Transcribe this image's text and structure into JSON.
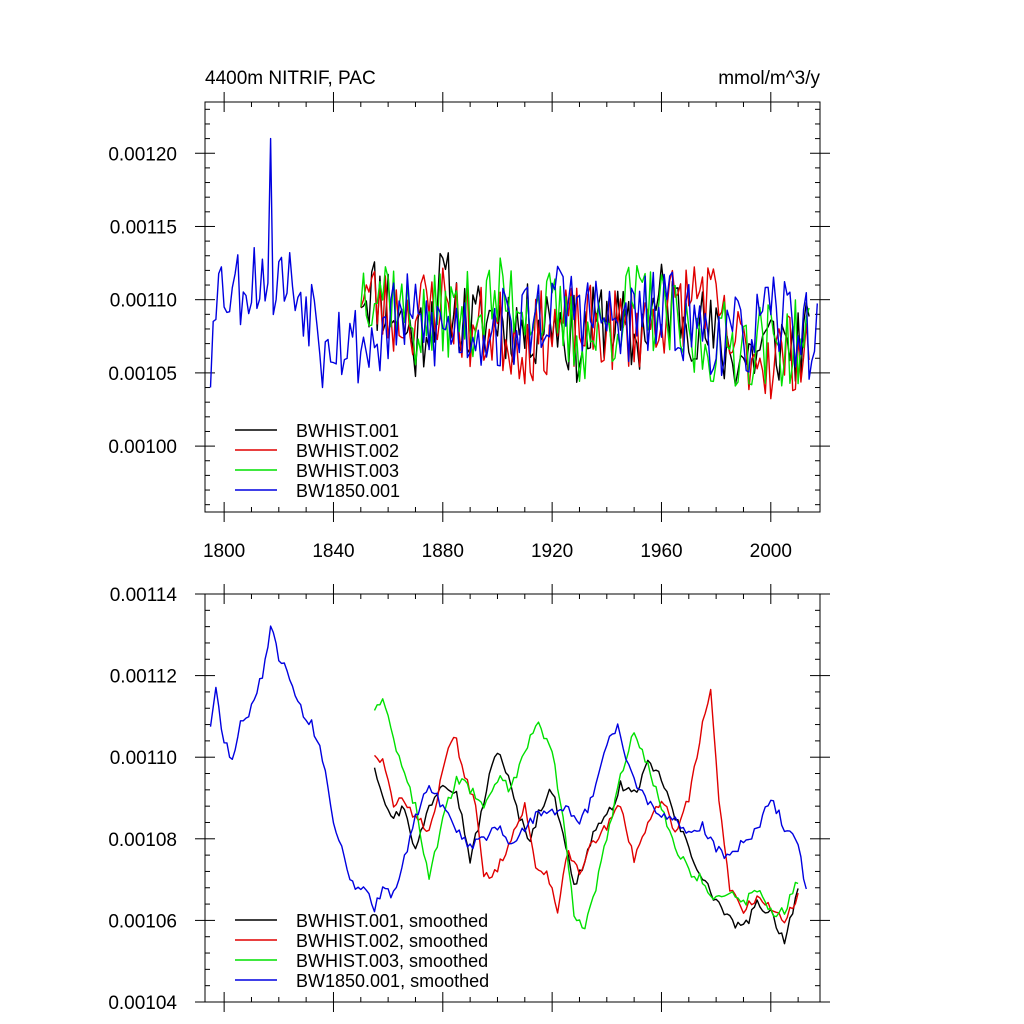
{
  "chart_data": [
    {
      "type": "line",
      "title_left": "4400m NITRIF, PAC",
      "title_right": "mmol/m^3/y",
      "xlim": [
        1793,
        2018
      ],
      "ylim": [
        0.000955,
        0.001235
      ],
      "x_ticks": [
        1800,
        1840,
        1880,
        1920,
        1960,
        2000
      ],
      "y_ticks": [
        0.001,
        0.00105,
        0.0011,
        0.00115,
        0.0012
      ],
      "y_tick_labels": [
        "0.00100",
        "0.00105",
        "0.00110",
        "0.00115",
        "0.00120"
      ],
      "show_x_tick_labels": true,
      "legend": [
        "BWHIST.001",
        "BWHIST.002",
        "BWHIST.003",
        "BW1850.001"
      ],
      "colors": [
        "#000000",
        "#e00000",
        "#00e000",
        "#0000e0"
      ],
      "series": [
        {
          "name": "BWHIST.001",
          "x_start": 1850,
          "x_end": 2014,
          "anchors": [
            [
              1850,
              0.00111
            ],
            [
              1860,
              0.0011
            ],
            [
              1870,
              0.00107
            ],
            [
              1880,
              0.00111
            ],
            [
              1890,
              0.00108
            ],
            [
              1900,
              0.00109
            ],
            [
              1910,
              0.00108
            ],
            [
              1920,
              0.00109
            ],
            [
              1930,
              0.00107
            ],
            [
              1940,
              0.00109
            ],
            [
              1950,
              0.00107
            ],
            [
              1960,
              0.0011
            ],
            [
              1970,
              0.00109
            ],
            [
              1980,
              0.00107
            ],
            [
              1990,
              0.00106
            ],
            [
              2000,
              0.00107
            ],
            [
              2014,
              0.00107
            ]
          ],
          "amp": 3e-05,
          "seed": 11
        },
        {
          "name": "BWHIST.002",
          "x_start": 1850,
          "x_end": 2014,
          "anchors": [
            [
              1850,
              0.00111
            ],
            [
              1860,
              0.00109
            ],
            [
              1870,
              0.00109
            ],
            [
              1880,
              0.0011
            ],
            [
              1890,
              0.00108
            ],
            [
              1900,
              0.00108
            ],
            [
              1910,
              0.00107
            ],
            [
              1920,
              0.00108
            ],
            [
              1930,
              0.00108
            ],
            [
              1940,
              0.00108
            ],
            [
              1950,
              0.00108
            ],
            [
              1960,
              0.00109
            ],
            [
              1970,
              0.0011
            ],
            [
              1975,
              0.00111
            ],
            [
              1985,
              0.00107
            ],
            [
              2000,
              0.00106
            ],
            [
              2014,
              0.00107
            ]
          ],
          "amp": 3e-05,
          "seed": 23
        },
        {
          "name": "BWHIST.003",
          "x_start": 1850,
          "x_end": 2014,
          "anchors": [
            [
              1850,
              0.00111
            ],
            [
              1860,
              0.00111
            ],
            [
              1870,
              0.00108
            ],
            [
              1880,
              0.00109
            ],
            [
              1890,
              0.00109
            ],
            [
              1900,
              0.0011
            ],
            [
              1910,
              0.0011
            ],
            [
              1920,
              0.00109
            ],
            [
              1930,
              0.00107
            ],
            [
              1940,
              0.00108
            ],
            [
              1950,
              0.0011
            ],
            [
              1960,
              0.00109
            ],
            [
              1970,
              0.00107
            ],
            [
              1980,
              0.00107
            ],
            [
              1990,
              0.00107
            ],
            [
              2000,
              0.00107
            ],
            [
              2014,
              0.00107
            ]
          ],
          "amp": 3e-05,
          "seed": 37
        },
        {
          "name": "BW1850.001",
          "x_start": 1795,
          "x_end": 2017,
          "anchors": [
            [
              1795,
              0.00111
            ],
            [
              1805,
              0.00111
            ],
            [
              1815,
              0.00112
            ],
            [
              1825,
              0.00111
            ],
            [
              1835,
              0.00109
            ],
            [
              1845,
              0.00107
            ],
            [
              1855,
              0.00107
            ],
            [
              1865,
              0.00109
            ],
            [
              1875,
              0.00108
            ],
            [
              1885,
              0.00108
            ],
            [
              1895,
              0.00108
            ],
            [
              1905,
              0.00108
            ],
            [
              1915,
              0.00109
            ],
            [
              1925,
              0.0011
            ],
            [
              1935,
              0.00109
            ],
            [
              1945,
              0.00108
            ],
            [
              1955,
              0.00109
            ],
            [
              1965,
              0.00109
            ],
            [
              1975,
              0.00108
            ],
            [
              1985,
              0.00107
            ],
            [
              1995,
              0.00108
            ],
            [
              2005,
              0.00109
            ],
            [
              2017,
              0.00107
            ]
          ],
          "amp": 3e-05,
          "seed": 53,
          "spikes": [
            [
              1817,
              0.00121
            ],
            [
              1795,
              0.00104
            ],
            [
              1836,
              0.00104
            ]
          ]
        }
      ]
    },
    {
      "type": "line",
      "title_left": "",
      "title_right": "",
      "xlim": [
        1793,
        2018
      ],
      "ylim": [
        0.00104,
        0.00114
      ],
      "x_ticks": [
        1800,
        1840,
        1880,
        1920,
        1960,
        2000
      ],
      "y_ticks": [
        0.00104,
        0.00106,
        0.00108,
        0.0011,
        0.00112,
        0.00114
      ],
      "y_tick_labels": [
        "0.00104",
        "0.00106",
        "0.00108",
        "0.00110",
        "0.00112",
        "0.00114"
      ],
      "show_x_tick_labels": false,
      "legend": [
        "BWHIST.001, smoothed",
        "BWHIST.002, smoothed",
        "BWHIST.003, smoothed",
        "BW1850.001, smoothed"
      ],
      "colors": [
        "#000000",
        "#e00000",
        "#00e000",
        "#0000e0"
      ],
      "series": [
        {
          "name": "BWHIST.001, smoothed",
          "x_start": 1855,
          "x_end": 2010,
          "anchors": [
            [
              1855,
              0.001098
            ],
            [
              1858,
              0.001091
            ],
            [
              1862,
              0.001085
            ],
            [
              1866,
              0.001088
            ],
            [
              1870,
              0.001077
            ],
            [
              1875,
              0.001088
            ],
            [
              1880,
              0.001094
            ],
            [
              1885,
              0.001092
            ],
            [
              1890,
              0.001075
            ],
            [
              1893,
              0.001083
            ],
            [
              1897,
              0.001095
            ],
            [
              1900,
              0.001102
            ],
            [
              1903,
              0.001097
            ],
            [
              1908,
              0.001085
            ],
            [
              1912,
              0.00108
            ],
            [
              1916,
              0.001088
            ],
            [
              1920,
              0.001092
            ],
            [
              1924,
              0.001082
            ],
            [
              1928,
              0.001068
            ],
            [
              1932,
              0.001075
            ],
            [
              1936,
              0.001083
            ],
            [
              1940,
              0.001085
            ],
            [
              1945,
              0.001093
            ],
            [
              1950,
              0.001091
            ],
            [
              1955,
              0.001098
            ],
            [
              1960,
              0.001095
            ],
            [
              1965,
              0.001085
            ],
            [
              1970,
              0.001078
            ],
            [
              1975,
              0.00107
            ],
            [
              1980,
              0.001065
            ],
            [
              1985,
              0.00106
            ],
            [
              1990,
              0.001058
            ],
            [
              1995,
              0.001064
            ],
            [
              2000,
              0.001062
            ],
            [
              2005,
              0.001055
            ],
            [
              2010,
              0.001068
            ]
          ]
        },
        {
          "name": "BWHIST.002, smoothed",
          "x_start": 1855,
          "x_end": 2010,
          "anchors": [
            [
              1855,
              0.001101
            ],
            [
              1858,
              0.001099
            ],
            [
              1862,
              0.001088
            ],
            [
              1866,
              0.00109
            ],
            [
              1870,
              0.001085
            ],
            [
              1875,
              0.001082
            ],
            [
              1880,
              0.001096
            ],
            [
              1884,
              0.001106
            ],
            [
              1888,
              0.001096
            ],
            [
              1892,
              0.001088
            ],
            [
              1895,
              0.00107
            ],
            [
              1900,
              0.001073
            ],
            [
              1905,
              0.00108
            ],
            [
              1910,
              0.001088
            ],
            [
              1914,
              0.001073
            ],
            [
              1918,
              0.001072
            ],
            [
              1922,
              0.001063
            ],
            [
              1926,
              0.001077
            ],
            [
              1930,
              0.001072
            ],
            [
              1935,
              0.001079
            ],
            [
              1940,
              0.001083
            ],
            [
              1945,
              0.001088
            ],
            [
              1950,
              0.001075
            ],
            [
              1955,
              0.001083
            ],
            [
              1960,
              0.00109
            ],
            [
              1965,
              0.001082
            ],
            [
              1970,
              0.00109
            ],
            [
              1975,
              0.001108
            ],
            [
              1978,
              0.001116
            ],
            [
              1981,
              0.00109
            ],
            [
              1985,
              0.001068
            ],
            [
              1990,
              0.001062
            ],
            [
              1995,
              0.001066
            ],
            [
              2000,
              0.001063
            ],
            [
              2005,
              0.00106
            ],
            [
              2010,
              0.001066
            ]
          ]
        },
        {
          "name": "BWHIST.003, smoothed",
          "x_start": 1855,
          "x_end": 2010,
          "anchors": [
            [
              1855,
              0.001112
            ],
            [
              1858,
              0.001115
            ],
            [
              1862,
              0.001105
            ],
            [
              1866,
              0.001095
            ],
            [
              1870,
              0.001088
            ],
            [
              1875,
              0.00107
            ],
            [
              1880,
              0.001085
            ],
            [
              1885,
              0.001095
            ],
            [
              1890,
              0.001092
            ],
            [
              1895,
              0.001088
            ],
            [
              1900,
              0.001095
            ],
            [
              1905,
              0.001092
            ],
            [
              1910,
              0.001102
            ],
            [
              1915,
              0.001108
            ],
            [
              1920,
              0.001102
            ],
            [
              1924,
              0.001085
            ],
            [
              1928,
              0.001062
            ],
            [
              1932,
              0.001058
            ],
            [
              1936,
              0.001068
            ],
            [
              1940,
              0.00108
            ],
            [
              1945,
              0.001095
            ],
            [
              1950,
              0.001106
            ],
            [
              1955,
              0.001098
            ],
            [
              1960,
              0.001088
            ],
            [
              1965,
              0.001078
            ],
            [
              1970,
              0.001072
            ],
            [
              1975,
              0.00107
            ],
            [
              1980,
              0.001065
            ],
            [
              1985,
              0.001067
            ],
            [
              1990,
              0.001064
            ],
            [
              1995,
              0.001068
            ],
            [
              2000,
              0.001062
            ],
            [
              2005,
              0.001062
            ],
            [
              2010,
              0.00107
            ]
          ]
        },
        {
          "name": "BW1850.001, smoothed",
          "x_start": 1795,
          "x_end": 2013,
          "anchors": [
            [
              1795,
              0.001108
            ],
            [
              1797,
              0.001116
            ],
            [
              1800,
              0.001104
            ],
            [
              1803,
              0.001099
            ],
            [
              1806,
              0.001108
            ],
            [
              1810,
              0.001112
            ],
            [
              1814,
              0.00112
            ],
            [
              1817,
              0.001132
            ],
            [
              1820,
              0.001124
            ],
            [
              1824,
              0.00112
            ],
            [
              1828,
              0.001112
            ],
            [
              1832,
              0.001108
            ],
            [
              1836,
              0.0011
            ],
            [
              1840,
              0.001085
            ],
            [
              1844,
              0.001075
            ],
            [
              1848,
              0.001067
            ],
            [
              1852,
              0.001068
            ],
            [
              1855,
              0.001063
            ],
            [
              1858,
              0.001068
            ],
            [
              1862,
              0.001066
            ],
            [
              1866,
              0.001075
            ],
            [
              1870,
              0.001085
            ],
            [
              1875,
              0.001093
            ],
            [
              1880,
              0.001088
            ],
            [
              1885,
              0.001082
            ],
            [
              1890,
              0.001078
            ],
            [
              1895,
              0.00108
            ],
            [
              1900,
              0.001083
            ],
            [
              1905,
              0.001079
            ],
            [
              1910,
              0.001082
            ],
            [
              1915,
              0.001087
            ],
            [
              1920,
              0.001086
            ],
            [
              1925,
              0.001088
            ],
            [
              1930,
              0.001084
            ],
            [
              1935,
              0.00109
            ],
            [
              1940,
              0.001103
            ],
            [
              1944,
              0.001108
            ],
            [
              1948,
              0.001098
            ],
            [
              1952,
              0.001092
            ],
            [
              1956,
              0.001088
            ],
            [
              1960,
              0.001085
            ],
            [
              1965,
              0.001085
            ],
            [
              1970,
              0.001082
            ],
            [
              1975,
              0.001083
            ],
            [
              1980,
              0.001078
            ],
            [
              1985,
              0.001075
            ],
            [
              1990,
              0.00108
            ],
            [
              1995,
              0.001082
            ],
            [
              2000,
              0.00109
            ],
            [
              2005,
              0.001083
            ],
            [
              2010,
              0.001078
            ],
            [
              2013,
              0.001068
            ]
          ]
        }
      ]
    }
  ]
}
